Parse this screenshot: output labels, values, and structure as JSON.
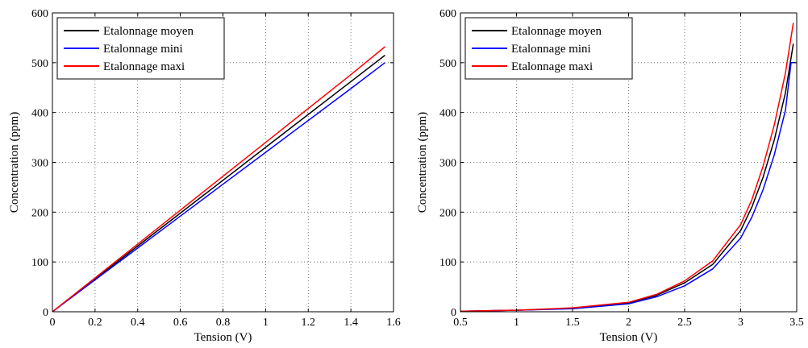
{
  "chart_data": [
    {
      "type": "line",
      "xlabel": "Tension (V)",
      "ylabel": "Concentration (ppm)",
      "xlim": [
        0,
        1.6
      ],
      "ylim": [
        0,
        600
      ],
      "xticks": [
        "0",
        "0.2",
        "0.4",
        "0.6",
        "0.8",
        "1",
        "1.2",
        "1.4",
        "1.6"
      ],
      "yticks": [
        "0",
        "100",
        "200",
        "300",
        "400",
        "500",
        "600"
      ],
      "grid": true,
      "legend_position": "top-left",
      "series": [
        {
          "name": "Etalonnage moyen",
          "color": "#000000",
          "x": [
            0,
            0.2,
            0.4,
            0.6,
            0.8,
            1.0,
            1.2,
            1.4,
            1.56
          ],
          "y": [
            0,
            66,
            132,
            198,
            264,
            330,
            396,
            462,
            515
          ]
        },
        {
          "name": "Etalonnage mini",
          "color": "#0000ff",
          "x": [
            0,
            0.2,
            0.4,
            0.6,
            0.8,
            1.0,
            1.2,
            1.4,
            1.56
          ],
          "y": [
            0,
            64,
            128,
            192,
            256,
            320,
            384,
            448,
            500
          ]
        },
        {
          "name": "Etalonnage maxi",
          "color": "#ff0000",
          "x": [
            0,
            0.2,
            0.4,
            0.6,
            0.8,
            1.0,
            1.2,
            1.4,
            1.56
          ],
          "y": [
            0,
            68,
            136,
            204,
            272,
            340,
            408,
            476,
            532
          ]
        }
      ]
    },
    {
      "type": "line",
      "xlabel": "Tension (V)",
      "ylabel": "Concentration (ppm)",
      "xlim": [
        0.5,
        3.5
      ],
      "ylim": [
        0,
        600
      ],
      "xticks": [
        "0.5",
        "1",
        "1.5",
        "2",
        "2.5",
        "3",
        "3.5"
      ],
      "yticks": [
        "0",
        "100",
        "200",
        "300",
        "400",
        "500",
        "600"
      ],
      "grid": true,
      "legend_position": "top-left",
      "series": [
        {
          "name": "Etalonnage moyen",
          "color": "#000000",
          "x": [
            0.5,
            1.0,
            1.5,
            2.0,
            2.25,
            2.5,
            2.75,
            3.0,
            3.1,
            3.2,
            3.3,
            3.4,
            3.47
          ],
          "y": [
            1,
            3,
            7,
            18,
            33,
            58,
            95,
            163,
            210,
            270,
            345,
            440,
            538
          ]
        },
        {
          "name": "Etalonnage mini",
          "color": "#0000ff",
          "x": [
            0.5,
            1.0,
            1.5,
            2.0,
            2.25,
            2.5,
            2.75,
            3.0,
            3.1,
            3.2,
            3.3,
            3.4,
            3.45,
            3.49
          ],
          "y": [
            1,
            3,
            6,
            16,
            30,
            52,
            86,
            148,
            190,
            245,
            315,
            405,
            500,
            500
          ]
        },
        {
          "name": "Etalonnage maxi",
          "color": "#ff0000",
          "x": [
            0.5,
            1.0,
            1.5,
            2.0,
            2.25,
            2.5,
            2.75,
            3.0,
            3.1,
            3.2,
            3.3,
            3.4,
            3.47
          ],
          "y": [
            1,
            3,
            8,
            19,
            35,
            62,
            102,
            175,
            225,
            292,
            375,
            480,
            580
          ]
        }
      ]
    }
  ]
}
